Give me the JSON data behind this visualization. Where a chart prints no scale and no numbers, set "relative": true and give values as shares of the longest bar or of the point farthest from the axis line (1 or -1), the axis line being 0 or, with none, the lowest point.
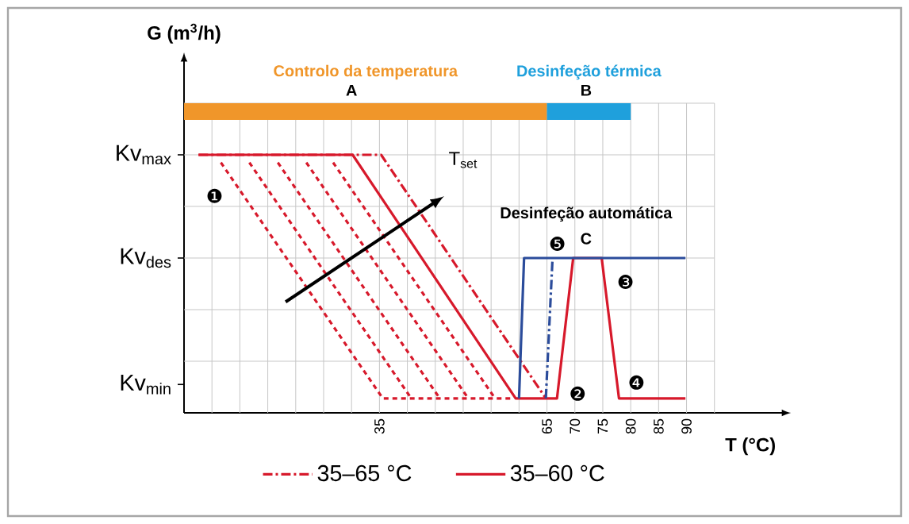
{
  "chart_data": {
    "type": "line",
    "relative": true,
    "xlabel": "T (°C)",
    "xlim": [
      0,
      107
    ],
    "xticks": [
      {
        "value": 5,
        "label": null
      },
      {
        "value": 10,
        "label": null
      },
      {
        "value": 15,
        "label": null
      },
      {
        "value": 20,
        "label": null
      },
      {
        "value": 25,
        "label": null
      },
      {
        "value": 30,
        "label": null
      },
      35,
      {
        "value": 40,
        "label": null
      },
      {
        "value": 45,
        "label": null
      },
      {
        "value": 50,
        "label": null
      },
      {
        "value": 55,
        "label": null
      },
      {
        "value": 60,
        "label": null
      },
      65,
      70,
      75,
      80,
      85,
      90,
      {
        "value": 95,
        "label": null
      }
    ],
    "grid": true,
    "legend": "bottom",
    "annotations": [
      "A",
      "B",
      "Desinfeção automática",
      "C",
      "T$_{set}$",
      "Kv$_{min}$",
      "Kv$_{des}$",
      "Kv$_{max}$",
      "G (m$^{3}$/h)",
      "Controlo da temperatura",
      "Desinfeção térmica",
      {
        "text": "❶",
        "x": 6.6,
        "y": 0.97
      },
      {
        "text": "❷",
        "x": 66.8,
        "y": 0.056
      },
      {
        "text": "❸",
        "x": 74.8,
        "y": 0.6
      },
      {
        "text": "❹",
        "x": 77.9,
        "y": 0.056
      },
      {
        "text": "❺",
        "x": 66,
        "y": 0.6
      }
    ],
    "series": [
      {
        "color": "#d7192b",
        "line_style": "dashed",
        "x": [
          6.6,
          35.6,
          59
        ],
        "values": [
          0.97,
          0.056,
          0.056
        ]
      },
      {
        "color": "#d7192b",
        "line_style": "dashed",
        "x": [
          11.7,
          40.7
        ],
        "values": [
          0.97,
          0.056
        ]
      },
      {
        "color": "#d7192b",
        "line_style": "dashed",
        "x": [
          16.8,
          45.8
        ],
        "values": [
          0.97,
          0.056
        ]
      },
      {
        "color": "#d7192b",
        "line_style": "dashed",
        "x": [
          21.9,
          50.9
        ],
        "values": [
          0.97,
          0.056
        ]
      },
      {
        "color": "#d7192b",
        "line_style": "dashed",
        "x": [
          26.7,
          55.7
        ],
        "values": [
          0.97,
          0.056
        ]
      },
      {
        "name": "35–65 °C",
        "color": "#d7192b",
        "line_style": "dashdot",
        "x": [
          2.6,
          35.3,
          64.8
        ],
        "values": [
          1,
          1,
          0.056
        ]
      },
      {
        "name": "35–60 °C",
        "color": "#d7192b",
        "line_style": "solid",
        "x": [
          2.6,
          30.2,
          59.4,
          66.8,
          69.7,
          74.8,
          77.9,
          89.8
        ],
        "values": [
          1,
          1,
          0.056,
          0.056,
          0.6,
          0.6,
          0.056,
          0.056
        ]
      },
      {
        "color": "#2b4c9b",
        "line_style": "solid",
        "x": [
          60,
          60.9,
          89.8
        ],
        "values": [
          0.056,
          0.6,
          0.6
        ]
      },
      {
        "color": "#2b4c9b",
        "line_style": "dashdot",
        "x": [
          64.8,
          66
        ],
        "values": [
          0.056,
          0.6
        ]
      }
    ]
  }
}
